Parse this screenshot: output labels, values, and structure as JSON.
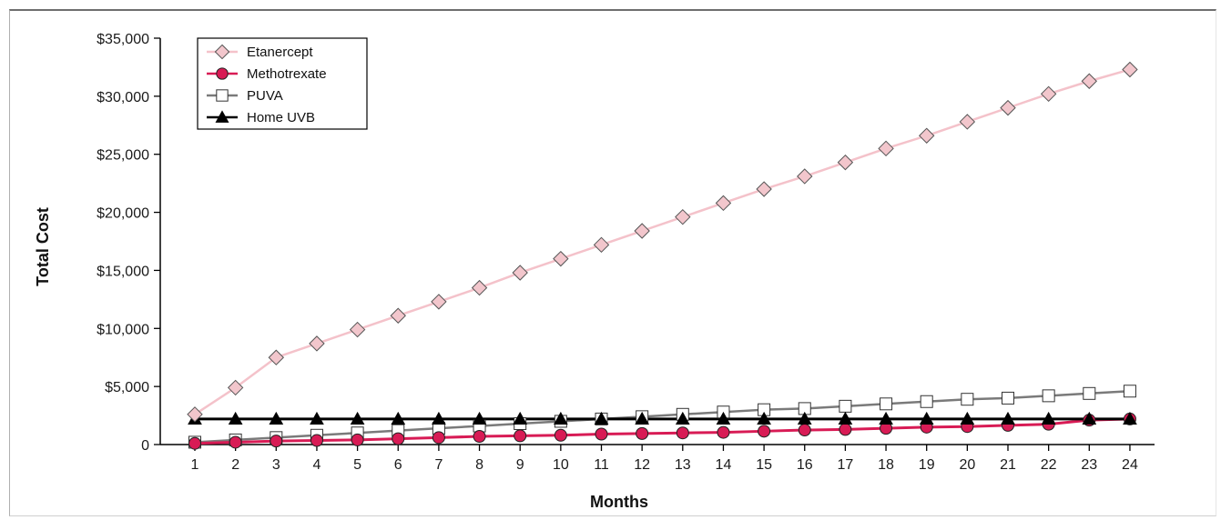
{
  "chart_data": {
    "type": "line",
    "title": "",
    "xlabel": "Months",
    "ylabel": "Total Cost",
    "x": [
      1,
      2,
      3,
      4,
      5,
      6,
      7,
      8,
      9,
      10,
      11,
      12,
      13,
      14,
      15,
      16,
      17,
      18,
      19,
      20,
      21,
      22,
      23,
      24
    ],
    "x_tick_labels": [
      "1",
      "2",
      "3",
      "4",
      "5",
      "6",
      "7",
      "8",
      "9",
      "10",
      "11",
      "12",
      "13",
      "14",
      "15",
      "16",
      "17",
      "18",
      "19",
      "20",
      "21",
      "22",
      "23",
      "24"
    ],
    "ylim": [
      0,
      35000
    ],
    "y_ticks": [
      0,
      5000,
      10000,
      15000,
      20000,
      25000,
      30000,
      35000
    ],
    "y_tick_labels": [
      "0",
      "$5,000",
      "$10,000",
      "$15,000",
      "$20,000",
      "$25,000",
      "$30,000",
      "$35,000"
    ],
    "grid": false,
    "legend_position": "top-left",
    "series": [
      {
        "name": "Etanercept",
        "marker": "diamond",
        "color": "#f2c6cc",
        "line_color": "#f4c2ca",
        "values": [
          2600,
          4900,
          7500,
          8700,
          9900,
          11100,
          12300,
          13500,
          14800,
          16000,
          17200,
          18400,
          19600,
          20800,
          22000,
          23100,
          24300,
          25500,
          26600,
          27800,
          29000,
          30200,
          31300,
          32300
        ]
      },
      {
        "name": "Methotrexate",
        "marker": "circle",
        "color": "#d81b55",
        "line_color": "#d81b55",
        "values": [
          100,
          200,
          300,
          350,
          400,
          500,
          600,
          700,
          750,
          800,
          900,
          950,
          1000,
          1050,
          1150,
          1250,
          1300,
          1400,
          1500,
          1550,
          1650,
          1750,
          2100,
          2200
        ]
      },
      {
        "name": "PUVA",
        "marker": "square-open",
        "color": "#ffffff",
        "line_color": "#7a7a7a",
        "values": [
          200,
          400,
          600,
          800,
          1000,
          1200,
          1400,
          1600,
          1800,
          2000,
          2200,
          2400,
          2600,
          2800,
          3000,
          3100,
          3300,
          3500,
          3700,
          3900,
          4000,
          4200,
          4400,
          4600
        ]
      },
      {
        "name": "Home UVB",
        "marker": "triangle",
        "color": "#000000",
        "line_color": "#000000",
        "values": [
          2200,
          2200,
          2200,
          2200,
          2200,
          2200,
          2200,
          2200,
          2200,
          2200,
          2200,
          2200,
          2200,
          2200,
          2200,
          2200,
          2200,
          2200,
          2200,
          2200,
          2200,
          2200,
          2200,
          2200
        ]
      }
    ]
  }
}
